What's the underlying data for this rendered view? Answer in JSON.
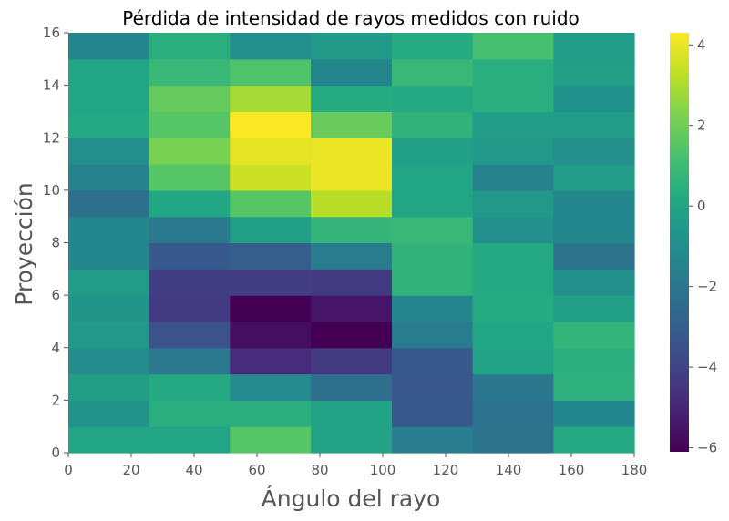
{
  "chart_data": {
    "type": "heatmap",
    "title": "Pérdida de intensidad de rayos medidos con ruido",
    "xlabel": "Ángulo del rayo",
    "ylabel": "Proyección",
    "xlim": [
      0,
      180
    ],
    "ylim": [
      0,
      16
    ],
    "x_edges": [
      0,
      25.7,
      51.4,
      77.1,
      102.9,
      128.6,
      154.3,
      180
    ],
    "y_edges": [
      0,
      1,
      2,
      3,
      4,
      5,
      6,
      7,
      8,
      9,
      10,
      11,
      12,
      13,
      14,
      15,
      16
    ],
    "x_ticks": [
      "0",
      "20",
      "40",
      "60",
      "80",
      "100",
      "120",
      "140",
      "160",
      "180"
    ],
    "y_ticks": [
      "0",
      "2",
      "4",
      "6",
      "8",
      "10",
      "12",
      "14",
      "16"
    ],
    "colorbar": {
      "min": -6.1,
      "max": 4.3,
      "ticks": [
        "4",
        "2",
        "0",
        "−2",
        "−4",
        "−6"
      ],
      "colormap": "viridis"
    },
    "values_bottom_to_top": [
      [
        0.0,
        0.0,
        1.5,
        -0.1,
        -1.7,
        -2.1,
        0.2
      ],
      [
        -0.8,
        0.4,
        0.4,
        -0.1,
        -3.2,
        -2.2,
        -1.3
      ],
      [
        -0.3,
        0.2,
        -1.2,
        -2.3,
        -3.3,
        -2.0,
        0.5
      ],
      [
        -1.1,
        -1.9,
        -4.8,
        -4.3,
        -3.2,
        -0.1,
        0.4
      ],
      [
        -0.6,
        -3.5,
        -5.7,
        -6.1,
        -1.8,
        0.0,
        0.7
      ],
      [
        -0.7,
        -4.3,
        -6.1,
        -5.5,
        -1.4,
        0.3,
        -0.2
      ],
      [
        -0.4,
        -4.2,
        -4.2,
        -4.3,
        0.6,
        0.2,
        -1.0
      ],
      [
        -1.3,
        -3.2,
        -3.0,
        -1.8,
        0.6,
        0.2,
        -2.1
      ],
      [
        -1.3,
        -1.9,
        -0.2,
        0.7,
        0.8,
        -1.0,
        -1.3
      ],
      [
        -2.3,
        0.1,
        1.5,
        3.2,
        0.0,
        -0.6,
        -1.3
      ],
      [
        -1.5,
        1.5,
        3.5,
        4.0,
        0.0,
        -1.5,
        -0.4
      ],
      [
        -1.0,
        2.2,
        3.9,
        4.0,
        -0.2,
        -0.6,
        -1.0
      ],
      [
        0.2,
        1.5,
        4.3,
        1.9,
        0.6,
        -0.4,
        -0.4
      ],
      [
        0.0,
        1.8,
        2.9,
        0.3,
        0.2,
        0.4,
        -0.9
      ],
      [
        0.0,
        0.8,
        1.4,
        -1.4,
        0.8,
        0.4,
        -0.2
      ],
      [
        -1.4,
        0.4,
        -1.0,
        -0.5,
        0.3,
        1.2,
        -0.4
      ]
    ]
  }
}
